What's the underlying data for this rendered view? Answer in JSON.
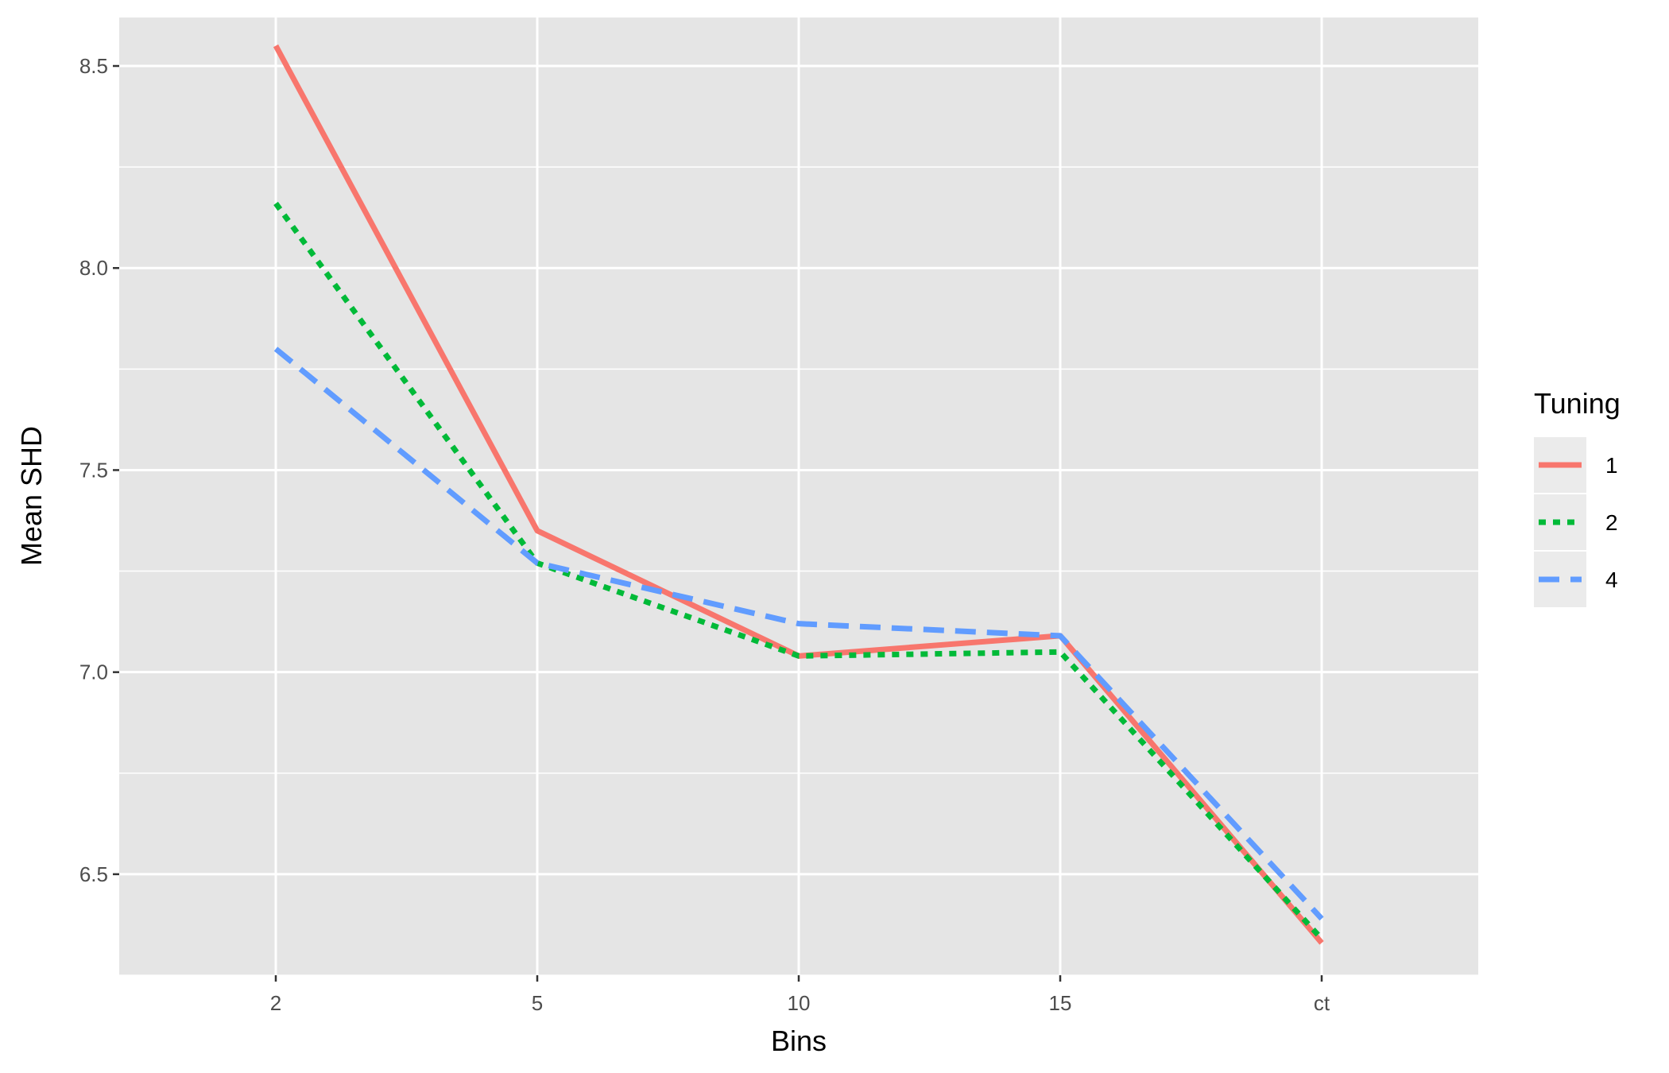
{
  "chart_data": {
    "type": "line",
    "xlabel": "Bins",
    "ylabel": "Mean SHD",
    "categories": [
      "2",
      "5",
      "10",
      "15",
      "ct"
    ],
    "ylim": [
      6.25,
      8.62
    ],
    "yticks": [
      6.5,
      7.0,
      7.5,
      8.0,
      8.5
    ],
    "y_tick_labels": [
      "6.5",
      "7.0",
      "7.5",
      "8.0",
      "8.5"
    ],
    "grid": true,
    "legend": {
      "title": "Tuning",
      "placement": "right"
    },
    "series": [
      {
        "name": "1",
        "color": "#F8766D",
        "dash": "solid",
        "values": [
          8.55,
          7.35,
          7.04,
          7.09,
          6.33
        ]
      },
      {
        "name": "2",
        "color": "#00BA38",
        "dash": "dotted",
        "values": [
          8.16,
          7.27,
          7.04,
          7.05,
          6.34
        ]
      },
      {
        "name": "4",
        "color": "#619CFF",
        "dash": "dashed",
        "values": [
          7.8,
          7.27,
          7.12,
          7.09,
          6.39
        ]
      }
    ]
  }
}
